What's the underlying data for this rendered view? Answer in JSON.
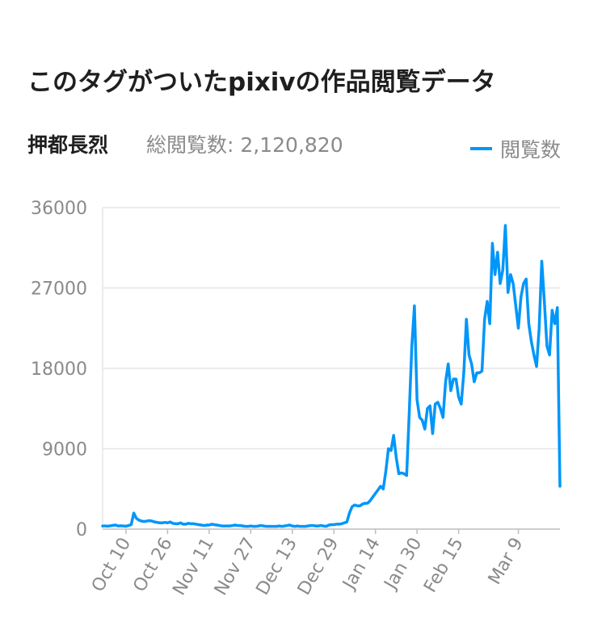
{
  "header": {
    "title": "このタグがついたpixivの作品閲覧データ",
    "tag_name": "押都長烈",
    "total_views": "総閲覧数: 2,120,820"
  },
  "colors": {
    "line": "#0096fa",
    "grid": "#e6e6e6",
    "axis_text": "#8a8a8a"
  },
  "chart_data": {
    "type": "line",
    "series": [
      {
        "name": "閲覧数",
        "x_start": "2019-10-01",
        "x_step_days": 1,
        "values": [
          350,
          350,
          330,
          370,
          420,
          450,
          350,
          370,
          350,
          320,
          400,
          500,
          1800,
          1200,
          1000,
          900,
          850,
          900,
          950,
          900,
          800,
          750,
          700,
          700,
          750,
          700,
          800,
          650,
          600,
          600,
          700,
          550,
          550,
          650,
          600,
          600,
          550,
          500,
          450,
          400,
          450,
          450,
          550,
          500,
          450,
          400,
          350,
          350,
          350,
          350,
          400,
          450,
          400,
          400,
          350,
          300,
          300,
          350,
          300,
          300,
          350,
          400,
          350,
          300,
          300,
          300,
          300,
          300,
          350,
          300,
          350,
          400,
          450,
          350,
          300,
          350,
          300,
          300,
          300,
          350,
          400,
          400,
          350,
          350,
          400,
          350,
          300,
          450,
          500,
          500,
          550,
          550,
          600,
          700,
          800,
          1800,
          2500,
          2700,
          2600,
          2600,
          2800,
          2900,
          2900,
          3200,
          3600,
          4000,
          4400,
          4800,
          4500,
          6500,
          9000,
          8800,
          10500,
          8000,
          6200,
          6300,
          6200,
          6000,
          13000,
          20500,
          25000,
          14500,
          12500,
          12200,
          11200,
          13500,
          13800,
          10700,
          14000,
          14200,
          13500,
          12500,
          16500,
          18500,
          15500,
          16800,
          16800,
          14800,
          14000,
          17500,
          23500,
          19500,
          18500,
          16500,
          17500,
          17500,
          17700,
          23500,
          25500,
          23000,
          32000,
          28500,
          31000,
          27500,
          29000,
          34000,
          26500,
          28500,
          27500,
          25000,
          22500,
          26000,
          27500,
          28000,
          23000,
          21000,
          19500,
          18200,
          22500,
          30000,
          25500,
          20500,
          19500,
          24500,
          23000,
          24800,
          4800
        ]
      }
    ],
    "x_tick_labels": [
      "Oct 10",
      "Oct 26",
      "Nov 11",
      "Nov 27",
      "Dec 13",
      "Dec 29",
      "Jan 14",
      "Jan 30",
      "Feb 15",
      "Mar 9"
    ],
    "x_tick_dates": [
      "2019-10-10",
      "2019-10-26",
      "2019-11-11",
      "2019-11-27",
      "2019-12-13",
      "2019-12-29",
      "2020-01-14",
      "2020-01-30",
      "2020-02-15",
      "2020-03-09"
    ],
    "y_tick_labels": [
      "0",
      "9000",
      "18000",
      "27000",
      "36000"
    ],
    "ylim": [
      0,
      36000
    ],
    "grid": true,
    "legend_position": "top-right"
  }
}
